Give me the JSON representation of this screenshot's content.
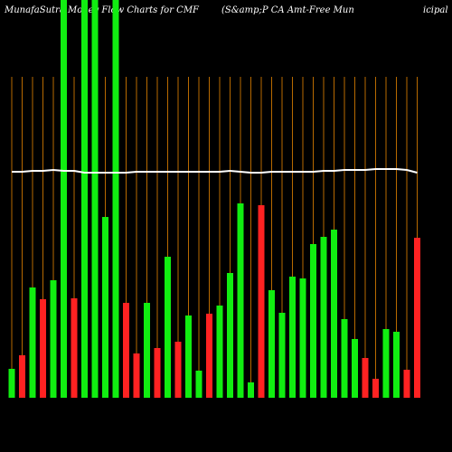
{
  "chart_data": {
    "type": "bar",
    "title": "MunafaSutra Money Flow Charts for CMF",
    "subtitle": "(S&amp;P CA Amt-Free Mun",
    "subtitle_end": "icipal",
    "values": [
      32,
      47,
      122,
      109,
      130,
      440,
      110,
      440,
      440,
      200,
      440,
      105,
      49,
      105,
      55,
      156,
      62,
      91,
      30,
      93,
      102,
      138,
      215,
      17,
      213,
      119,
      94,
      134,
      132,
      170,
      178,
      186,
      87,
      65,
      44,
      21,
      76,
      73,
      31,
      177
    ],
    "bar_colors": [
      "#11ee11",
      "#ff2222",
      "#11ee11",
      "#ff2222",
      "#11ee11",
      "#11ee11",
      "#ff2222",
      "#11ee11",
      "#11ee11",
      "#11ee11",
      "#11ee11",
      "#ff2222",
      "#ff2222",
      "#11ee11",
      "#ff2222",
      "#11ee11",
      "#ff2222",
      "#11ee11",
      "#11ee11",
      "#ff2222",
      "#11ee11",
      "#11ee11",
      "#11ee11",
      "#11ee11",
      "#ff2222",
      "#11ee11",
      "#11ee11",
      "#11ee11",
      "#11ee11",
      "#11ee11",
      "#11ee11",
      "#11ee11",
      "#11ee11",
      "#11ee11",
      "#ff2222",
      "#ff2222",
      "#11ee11",
      "#11ee11",
      "#ff2222",
      "#ff2222"
    ],
    "line_values": [
      250,
      250,
      251,
      251,
      252,
      251,
      251,
      249,
      249,
      249,
      249,
      249,
      250,
      250,
      250,
      250,
      250,
      250,
      250,
      250,
      250,
      251,
      250,
      249,
      249,
      250,
      250,
      250,
      250,
      250,
      251,
      251,
      252,
      252,
      252,
      253,
      253,
      253,
      252,
      249
    ],
    "line_color": "#ffffff",
    "grid_color": "#b86a00",
    "ylim": [
      0,
      440
    ]
  }
}
